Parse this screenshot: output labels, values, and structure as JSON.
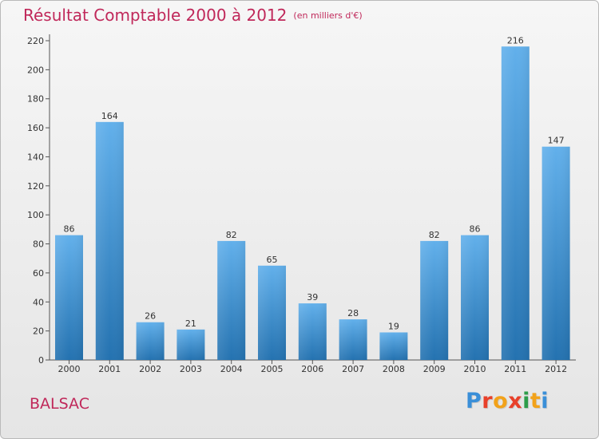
{
  "title": "Résultat Comptable 2000 à 2012",
  "subtitle": "(en milliers d'€)",
  "commune": "BALSAC",
  "logo": {
    "text": "Proxiti",
    "colors": [
      "#3a8fd8",
      "#e8402a",
      "#f2a21a",
      "#e8402a",
      "#2d9d4a",
      "#f2a21a",
      "#3a8fd8"
    ]
  },
  "colors": {
    "title": "#c0285a",
    "bar_top": "#62b0eb",
    "bar_bottom": "#2472b0",
    "background": "#eeeeee"
  },
  "chart_data": {
    "type": "bar",
    "categories": [
      "2000",
      "2001",
      "2002",
      "2003",
      "2004",
      "2005",
      "2006",
      "2007",
      "2008",
      "2009",
      "2010",
      "2011",
      "2012"
    ],
    "values": [
      86,
      164,
      26,
      21,
      82,
      65,
      39,
      28,
      19,
      82,
      86,
      216,
      147
    ],
    "title": "Résultat Comptable 2000 à 2012",
    "xlabel": "",
    "ylabel": "",
    "ylim": [
      0,
      220
    ],
    "yticks": [
      0,
      20,
      40,
      60,
      80,
      100,
      120,
      140,
      160,
      180,
      200,
      220
    ],
    "grid": false,
    "data_labels": true
  }
}
